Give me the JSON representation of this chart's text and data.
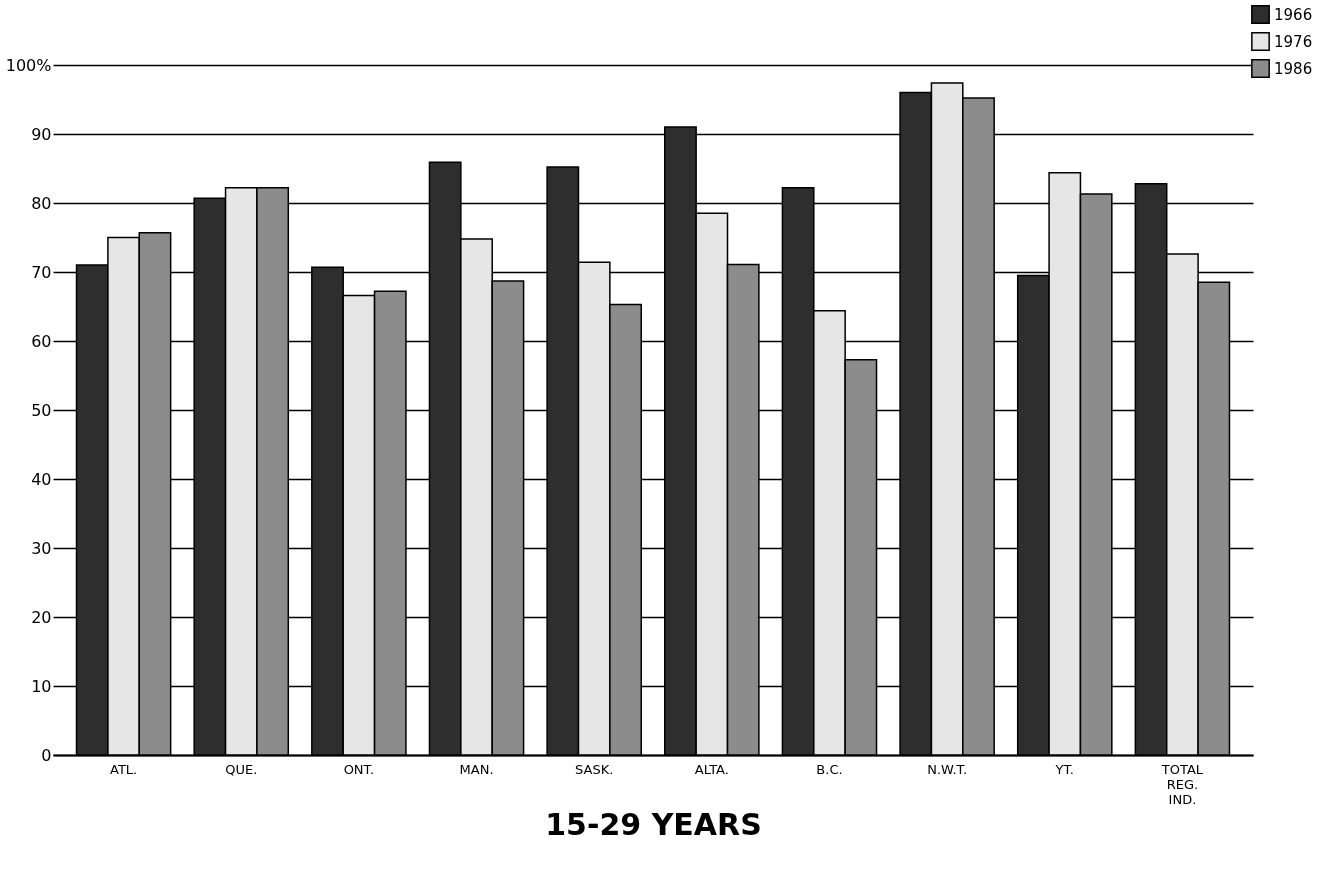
{
  "chart_data": {
    "type": "bar",
    "xlabel": "15-29 YEARS",
    "categories": [
      "ATL.",
      "QUE.",
      "ONT.",
      "MAN.",
      "SASK.",
      "ALTA.",
      "B.C.",
      "N.W.T.",
      "YT.",
      "TOTAL REG. IND."
    ],
    "series": [
      {
        "name": "1966",
        "color": "#2e2e2e",
        "values": [
          71.0,
          80.7,
          70.7,
          85.9,
          85.2,
          91.0,
          82.2,
          96.0,
          69.5,
          82.8
        ]
      },
      {
        "name": "1976",
        "color": "#e6e6e6",
        "values": [
          75.0,
          82.2,
          66.6,
          74.8,
          71.4,
          78.5,
          64.4,
          97.4,
          84.4,
          72.6
        ]
      },
      {
        "name": "1986",
        "color": "#8c8c8c",
        "values": [
          75.7,
          82.2,
          67.2,
          68.7,
          65.3,
          71.1,
          57.3,
          95.2,
          81.3,
          68.5
        ]
      }
    ],
    "ylim": [
      0,
      100
    ],
    "yticks": [
      0,
      10,
      20,
      30,
      40,
      50,
      60,
      70,
      80,
      90,
      {
        "value": 100,
        "label": "100%"
      }
    ],
    "grid": "y",
    "legend": "top right"
  }
}
